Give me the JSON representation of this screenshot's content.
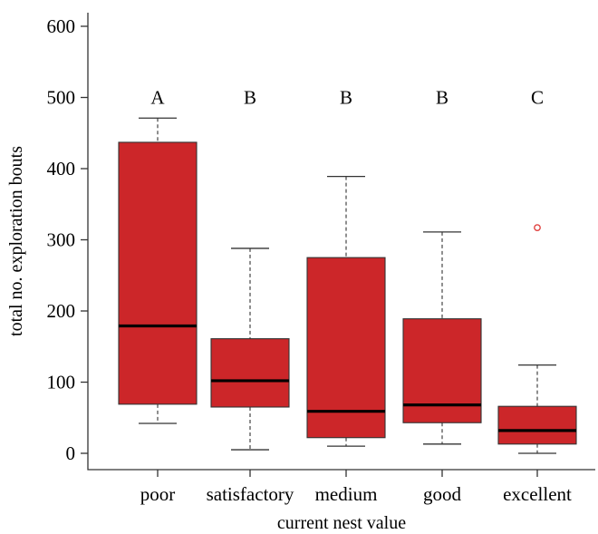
{
  "chart_data": {
    "type": "boxplot",
    "xlabel": "current nest value",
    "ylabel": "total no. exploration bouts",
    "ylim": [
      -22,
      622
    ],
    "yticks": [
      0,
      100,
      200,
      300,
      400,
      500,
      600
    ],
    "grid": false,
    "legend": "none",
    "box_color": "#cc2629",
    "outlier_color": "#e0413f",
    "categories": [
      "poor",
      "satisfactory",
      "medium",
      "good",
      "excellent"
    ],
    "group_letters": [
      "A",
      "B",
      "B",
      "B",
      "C"
    ],
    "letter_y": 500,
    "boxes": [
      {
        "label": "poor",
        "min": 42,
        "q1": 69,
        "median": 179,
        "q3": 437,
        "max": 471,
        "outliers": []
      },
      {
        "label": "satisfactory",
        "min": 5,
        "q1": 65,
        "median": 102,
        "q3": 161,
        "max": 288,
        "outliers": []
      },
      {
        "label": "medium",
        "min": 10,
        "q1": 22,
        "median": 59,
        "q3": 275,
        "max": 389,
        "outliers": []
      },
      {
        "label": "good",
        "min": 13,
        "q1": 43,
        "median": 68,
        "q3": 189,
        "max": 311,
        "outliers": []
      },
      {
        "label": "excellent",
        "min": 0,
        "q1": 13,
        "median": 32,
        "q3": 66,
        "max": 124,
        "outliers": [
          317
        ]
      }
    ]
  }
}
